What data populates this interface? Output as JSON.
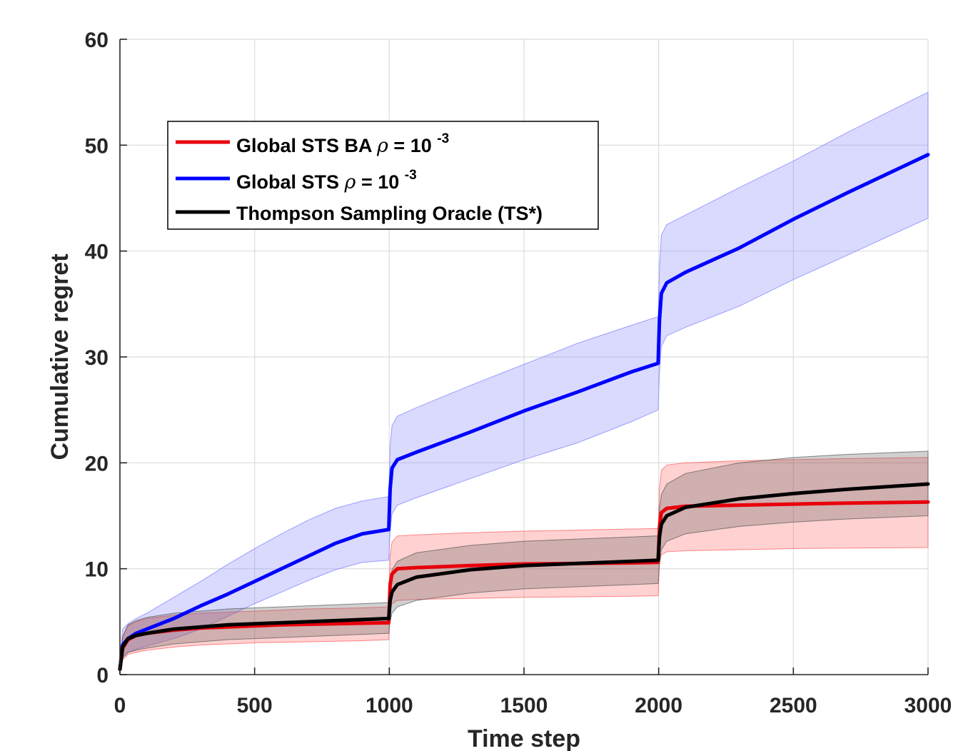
{
  "chart_data": {
    "type": "line",
    "title": "",
    "xlabel": "Time step",
    "ylabel": "Cumulative regret",
    "xlim": [
      0,
      3000
    ],
    "ylim": [
      0,
      60
    ],
    "xticks": [
      0,
      500,
      1000,
      1500,
      2000,
      2500,
      3000
    ],
    "yticks": [
      0,
      10,
      20,
      30,
      40,
      50,
      60
    ],
    "grid": true,
    "legend_position": "top-left",
    "series": [
      {
        "name_text": "Global STS BA",
        "name_symbol": "ρ",
        "name_eq": " = 10",
        "name_exp": "-3",
        "color": "#e8000b",
        "band_color": "#ff5a5a",
        "x": [
          0,
          10,
          30,
          60,
          100,
          200,
          300,
          400,
          500,
          600,
          700,
          800,
          900,
          998,
          1003,
          1010,
          1030,
          1100,
          1300,
          1500,
          1700,
          1900,
          1998,
          2003,
          2010,
          2030,
          2100,
          2300,
          2500,
          2700,
          3000
        ],
        "y": [
          0.5,
          2.5,
          3.3,
          3.7,
          3.9,
          4.2,
          4.4,
          4.5,
          4.6,
          4.7,
          4.75,
          4.8,
          4.85,
          4.9,
          8.5,
          9.5,
          10.0,
          10.1,
          10.3,
          10.45,
          10.5,
          10.55,
          10.6,
          14.0,
          15.3,
          15.7,
          15.9,
          16.0,
          16.1,
          16.2,
          16.3
        ],
        "lower": [
          0.3,
          1.4,
          1.9,
          2.1,
          2.3,
          2.6,
          2.8,
          2.9,
          3.0,
          3.05,
          3.1,
          3.15,
          3.2,
          3.3,
          6.0,
          6.7,
          7.0,
          7.1,
          7.2,
          7.3,
          7.35,
          7.4,
          7.45,
          10.5,
          11.3,
          11.6,
          11.7,
          11.8,
          11.9,
          11.95,
          12.0
        ],
        "upper": [
          0.8,
          3.6,
          4.6,
          5.0,
          5.3,
          5.6,
          5.8,
          5.9,
          6.0,
          6.1,
          6.2,
          6.25,
          6.3,
          6.4,
          11.2,
          12.5,
          13.1,
          13.2,
          13.4,
          13.55,
          13.65,
          13.75,
          13.8,
          17.6,
          19.3,
          19.8,
          20.0,
          20.2,
          20.3,
          20.4,
          20.5
        ]
      },
      {
        "name_text": "Global STS",
        "name_symbol": "ρ",
        "name_eq": " = 10",
        "name_exp": "-3",
        "color": "#0000ff",
        "band_color": "#7a7aff",
        "x": [
          0,
          10,
          30,
          60,
          100,
          200,
          300,
          400,
          500,
          600,
          700,
          800,
          900,
          998,
          1003,
          1010,
          1030,
          1100,
          1300,
          1500,
          1700,
          1900,
          1998,
          2003,
          2010,
          2030,
          2100,
          2300,
          2500,
          2700,
          3000
        ],
        "y": [
          0.5,
          2.8,
          3.4,
          3.9,
          4.3,
          5.3,
          6.5,
          7.6,
          8.8,
          10.0,
          11.2,
          12.4,
          13.3,
          13.7,
          17.5,
          19.5,
          20.3,
          21.0,
          22.9,
          24.9,
          26.7,
          28.6,
          29.4,
          33.5,
          36.0,
          37.0,
          38.0,
          40.3,
          43.0,
          45.5,
          49.1
        ],
        "lower": [
          0.3,
          1.6,
          2.1,
          2.4,
          2.7,
          3.4,
          4.3,
          5.5,
          6.7,
          7.8,
          8.9,
          9.9,
          10.6,
          10.8,
          13.5,
          15.2,
          16.0,
          16.7,
          18.5,
          20.3,
          21.9,
          23.9,
          25.0,
          28.5,
          31.0,
          32.0,
          32.8,
          34.8,
          37.3,
          39.6,
          43.1
        ],
        "upper": [
          1.0,
          4.3,
          4.8,
          5.3,
          5.8,
          7.3,
          8.8,
          10.4,
          11.9,
          13.3,
          14.6,
          15.7,
          16.4,
          16.8,
          21.5,
          23.5,
          24.4,
          25.2,
          27.3,
          29.3,
          31.3,
          33.0,
          33.8,
          38.5,
          41.5,
          42.5,
          43.4,
          46.0,
          48.5,
          51.2,
          55.0
        ]
      },
      {
        "name_text": "Thompson Sampling Oracle (TS*)",
        "name_symbol": "",
        "name_eq": "",
        "name_exp": "",
        "color": "#000000",
        "band_color": "#555555",
        "x": [
          0,
          10,
          30,
          60,
          100,
          200,
          300,
          400,
          500,
          600,
          700,
          800,
          900,
          998,
          1003,
          1010,
          1030,
          1100,
          1300,
          1500,
          1700,
          1900,
          1998,
          2003,
          2010,
          2030,
          2100,
          2300,
          2500,
          2700,
          3000
        ],
        "y": [
          0.5,
          2.6,
          3.4,
          3.7,
          3.9,
          4.3,
          4.5,
          4.7,
          4.8,
          4.9,
          5.0,
          5.1,
          5.2,
          5.3,
          7.0,
          7.8,
          8.5,
          9.2,
          9.9,
          10.3,
          10.5,
          10.7,
          10.8,
          13.0,
          14.2,
          15.0,
          15.8,
          16.6,
          17.1,
          17.5,
          18.0
        ],
        "lower": [
          0.3,
          1.6,
          2.1,
          2.3,
          2.5,
          2.9,
          3.1,
          3.3,
          3.4,
          3.5,
          3.6,
          3.7,
          3.8,
          3.9,
          5.0,
          5.8,
          6.4,
          7.0,
          7.7,
          8.1,
          8.3,
          8.5,
          8.6,
          10.5,
          11.8,
          12.6,
          13.3,
          14.0,
          14.4,
          14.7,
          15.0
        ],
        "upper": [
          0.8,
          3.6,
          4.7,
          5.1,
          5.4,
          5.8,
          6.0,
          6.2,
          6.3,
          6.4,
          6.5,
          6.6,
          6.7,
          6.8,
          8.8,
          9.9,
          10.7,
          11.5,
          12.2,
          12.6,
          12.8,
          13.0,
          13.1,
          15.7,
          17.0,
          18.0,
          19.0,
          20.0,
          20.5,
          20.8,
          21.1
        ]
      }
    ]
  }
}
